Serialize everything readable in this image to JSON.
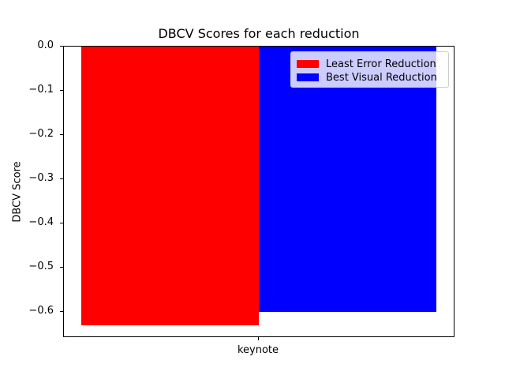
{
  "chart_data": {
    "type": "bar",
    "title": "DBCV Scores for each reduction",
    "xlabel": "",
    "ylabel": "DBCV Score",
    "categories": [
      "keynote"
    ],
    "series": [
      {
        "name": "Least Error Reduction",
        "values": [
          -0.63
        ],
        "color": "#ff0000"
      },
      {
        "name": "Best Visual Reduction",
        "values": [
          -0.6
        ],
        "color": "#0000ff"
      }
    ],
    "ylim": [
      -0.66,
      0.0
    ],
    "yticks": [
      "0.0",
      "−0.1",
      "−0.2",
      "−0.3",
      "−0.4",
      "−0.5",
      "−0.6"
    ],
    "ytick_values": [
      0.0,
      -0.1,
      -0.2,
      -0.3,
      -0.4,
      -0.5,
      -0.6
    ],
    "grid": false,
    "legend_position": "upper right"
  }
}
